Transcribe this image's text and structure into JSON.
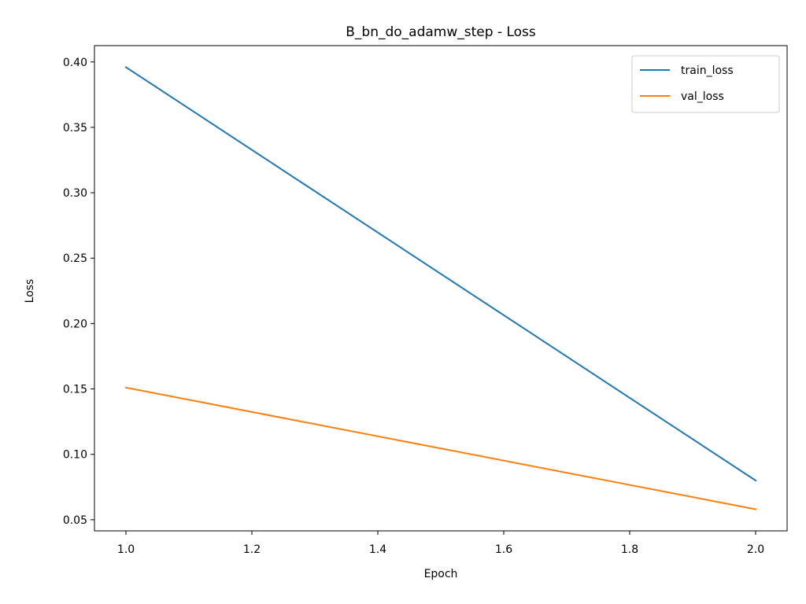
{
  "chart_data": {
    "type": "line",
    "title": "B_bn_do_adamw_step - Loss",
    "xlabel": "Epoch",
    "ylabel": "Loss",
    "xlim": [
      0.95,
      2.05
    ],
    "ylim": [
      0.0415,
      0.4125
    ],
    "x_ticks": [
      1.0,
      1.2,
      1.4,
      1.6,
      1.8,
      2.0
    ],
    "x_tick_labels": [
      "1.0",
      "1.2",
      "1.4",
      "1.6",
      "1.8",
      "2.0"
    ],
    "y_ticks": [
      0.05,
      0.1,
      0.15,
      0.2,
      0.25,
      0.3,
      0.35,
      0.4
    ],
    "y_tick_labels": [
      "0.05",
      "0.10",
      "0.15",
      "0.20",
      "0.25",
      "0.30",
      "0.35",
      "0.40"
    ],
    "grid": false,
    "legend_position": "top-right",
    "series": [
      {
        "name": "train_loss",
        "color": "#1f77b4",
        "x": [
          1.0,
          2.0
        ],
        "y": [
          0.396,
          0.08
        ]
      },
      {
        "name": "val_loss",
        "color": "#ff7f0e",
        "x": [
          1.0,
          2.0
        ],
        "y": [
          0.151,
          0.058
        ]
      }
    ]
  }
}
